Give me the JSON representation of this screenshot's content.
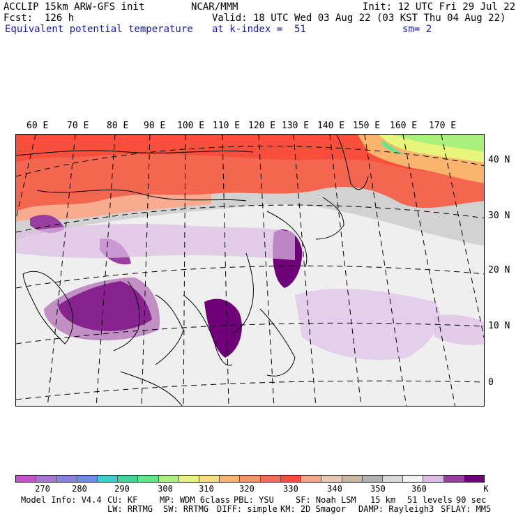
{
  "header": {
    "line1_left": "ACCLIP 15km ARW-GFS init",
    "line1_center": "NCAR/MMM",
    "line1_right": "Init: 12 UTC Fri 29 Jul 22",
    "line2_left": "Fcst:  126 h",
    "line2_right": "Valid: 18 UTC Wed 03 Aug 22 (03 KST Thu 04 Aug 22)",
    "line3_left": "Equivalent potential temperature",
    "line3_center": "at k-index =  51",
    "line3_right": "sm= 2"
  },
  "longitude_labels": [
    "60 E",
    "70 E",
    "80 E",
    "90 E",
    "100 E",
    "110 E",
    "120 E",
    "130 E",
    "140 E",
    "150 E",
    "160 E",
    "170 E"
  ],
  "latitude_labels": [
    "40 N",
    "30 N",
    "20 N",
    "10 N",
    "0"
  ],
  "colorbar": {
    "colors": [
      "#c553c9",
      "#a877d4",
      "#8a82e0",
      "#6f8df0",
      "#3fcfcf",
      "#3fd69a",
      "#5ee88e",
      "#a9f07c",
      "#e9f57a",
      "#f7e07a",
      "#f9b56d",
      "#f8936a",
      "#f56a5a",
      "#f8503e",
      "#f6a68a",
      "#e9c8b0",
      "#c9b7a5",
      "#b2b2b2",
      "#d9d9d9",
      "#f2f2f2",
      "#ddbde6",
      "#9a3fa0",
      "#6e0078"
    ],
    "tick_labels": [
      "270",
      "280",
      "290",
      "300",
      "310",
      "320",
      "330",
      "340",
      "350",
      "360"
    ],
    "unit": "K"
  },
  "footer": {
    "line1": [
      "Model Info: V4.4",
      "CU: KF",
      "MP: WDM 6class",
      "PBL: YSU",
      "SF: Noah LSM",
      "15 km",
      "51 levels",
      "90 sec"
    ],
    "line2": [
      "LW: RRTMG",
      "SW: RRTMG",
      "DIFF: simple",
      "KM: 2D Smagor",
      "DAMP: Rayleigh3",
      "SFLAY: MM5"
    ]
  }
}
